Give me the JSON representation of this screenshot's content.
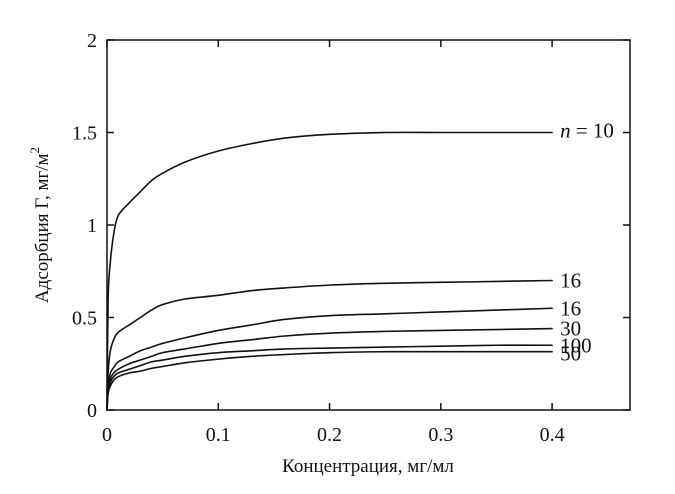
{
  "chart_data": {
    "type": "line",
    "xlabel": "Концентрация, мг/мл",
    "ylabel_main": "Адсорбция Γ, мг/м",
    "ylabel_sup": "2",
    "xlim": [
      0,
      0.47
    ],
    "ylim": [
      0,
      2
    ],
    "x_ticks": [
      0,
      0.1,
      0.2,
      0.3,
      0.4
    ],
    "x_tick_labels": [
      "0",
      "0.1",
      "0.2",
      "0.3",
      "0.4"
    ],
    "y_ticks": [
      0,
      0.5,
      1,
      1.5,
      2
    ],
    "y_tick_labels": [
      "0",
      "0.5",
      "1",
      "1.5",
      "2"
    ],
    "grid": false,
    "series": [
      {
        "name": "n = 10",
        "label_italic": "n",
        "label_rest": " = 10",
        "x": [
          0,
          0.001,
          0.003,
          0.006,
          0.01,
          0.02,
          0.03,
          0.04,
          0.05,
          0.07,
          0.1,
          0.13,
          0.16,
          0.2,
          0.25,
          0.3,
          0.35,
          0.4
        ],
        "y": [
          0,
          0.6,
          0.8,
          0.95,
          1.05,
          1.12,
          1.18,
          1.24,
          1.28,
          1.34,
          1.4,
          1.44,
          1.47,
          1.49,
          1.5,
          1.5,
          1.5,
          1.5
        ]
      },
      {
        "name": "16",
        "x": [
          0,
          0.001,
          0.003,
          0.006,
          0.01,
          0.02,
          0.03,
          0.04,
          0.05,
          0.07,
          0.1,
          0.13,
          0.16,
          0.2,
          0.25,
          0.3,
          0.35,
          0.4
        ],
        "y": [
          0,
          0.2,
          0.32,
          0.38,
          0.42,
          0.46,
          0.5,
          0.54,
          0.57,
          0.6,
          0.62,
          0.645,
          0.66,
          0.675,
          0.685,
          0.69,
          0.695,
          0.7
        ]
      },
      {
        "name": "16",
        "x": [
          0,
          0.001,
          0.003,
          0.006,
          0.01,
          0.02,
          0.03,
          0.04,
          0.05,
          0.07,
          0.1,
          0.13,
          0.16,
          0.2,
          0.25,
          0.3,
          0.35,
          0.4
        ],
        "y": [
          0,
          0.14,
          0.2,
          0.23,
          0.26,
          0.29,
          0.32,
          0.34,
          0.36,
          0.39,
          0.43,
          0.46,
          0.49,
          0.51,
          0.52,
          0.53,
          0.54,
          0.55
        ]
      },
      {
        "name": "30",
        "x": [
          0,
          0.001,
          0.003,
          0.006,
          0.01,
          0.02,
          0.03,
          0.04,
          0.05,
          0.07,
          0.1,
          0.13,
          0.16,
          0.2,
          0.25,
          0.3,
          0.35,
          0.4
        ],
        "y": [
          0,
          0.12,
          0.17,
          0.2,
          0.22,
          0.25,
          0.27,
          0.29,
          0.31,
          0.33,
          0.36,
          0.38,
          0.4,
          0.415,
          0.425,
          0.43,
          0.435,
          0.44
        ]
      },
      {
        "name": "100",
        "x": [
          0,
          0.001,
          0.003,
          0.006,
          0.01,
          0.02,
          0.03,
          0.04,
          0.05,
          0.07,
          0.1,
          0.13,
          0.16,
          0.2,
          0.25,
          0.3,
          0.35,
          0.4
        ],
        "y": [
          0,
          0.1,
          0.15,
          0.18,
          0.2,
          0.22,
          0.24,
          0.26,
          0.27,
          0.29,
          0.31,
          0.32,
          0.33,
          0.335,
          0.34,
          0.345,
          0.35,
          0.35
        ]
      },
      {
        "name": "50",
        "x": [
          0,
          0.001,
          0.003,
          0.006,
          0.01,
          0.02,
          0.03,
          0.04,
          0.05,
          0.07,
          0.1,
          0.13,
          0.16,
          0.2,
          0.25,
          0.3,
          0.35,
          0.4
        ],
        "y": [
          0,
          0.09,
          0.13,
          0.16,
          0.18,
          0.2,
          0.21,
          0.225,
          0.235,
          0.255,
          0.275,
          0.29,
          0.3,
          0.31,
          0.315,
          0.315,
          0.315,
          0.315
        ]
      }
    ]
  }
}
